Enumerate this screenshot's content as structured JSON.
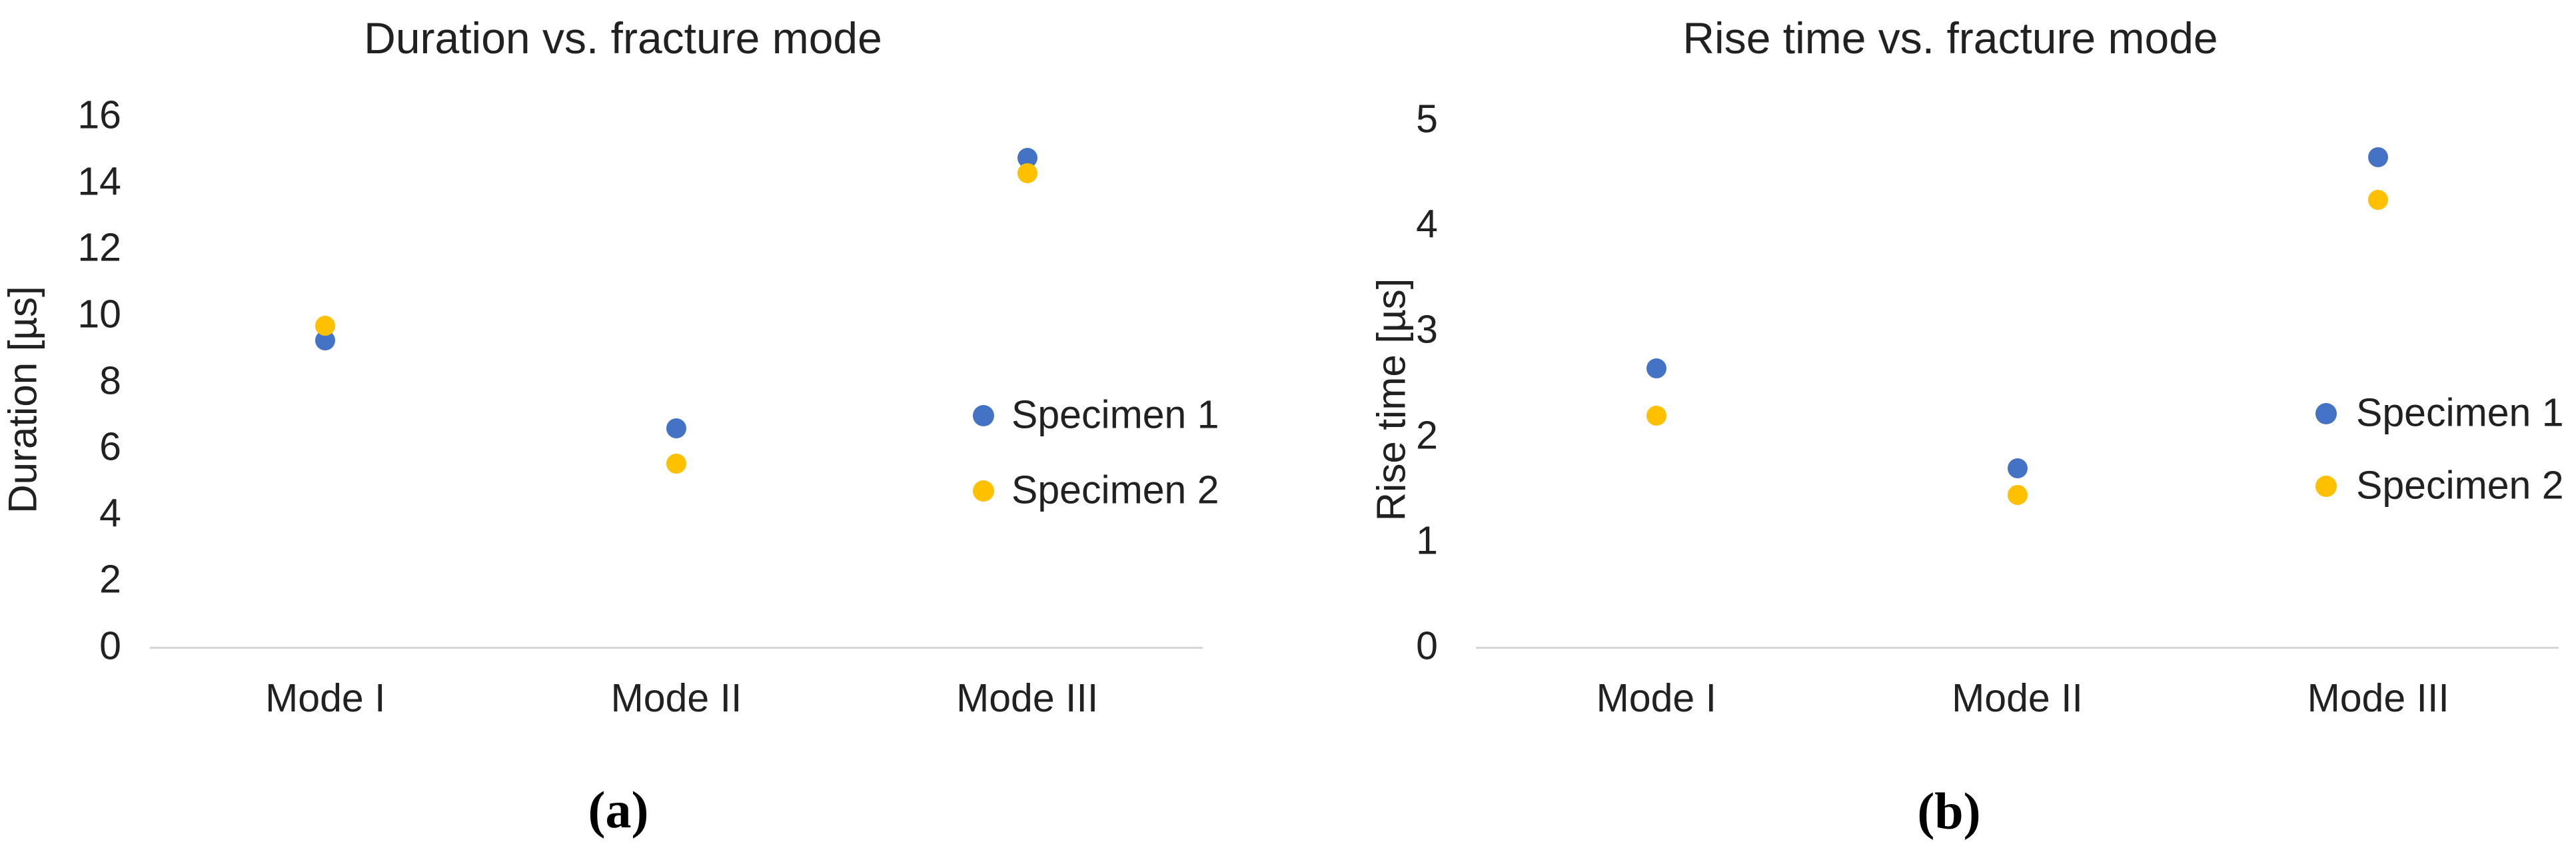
{
  "figure": {
    "panel_labels": [
      "(a)",
      "(b)"
    ]
  },
  "chart_data": [
    {
      "type": "scatter",
      "title": "Duration vs. fracture mode",
      "ylabel": "Duration [µs]",
      "xlabel": "",
      "categories": [
        "Mode I",
        "Mode II",
        "Mode III"
      ],
      "series": [
        {
          "name": "Specimen 1",
          "color": "#4472C4",
          "values": [
            9.25,
            6.6,
            14.75
          ]
        },
        {
          "name": "Specimen 2",
          "color": "#FFC000",
          "values": [
            9.7,
            5.55,
            14.3
          ]
        }
      ],
      "ylim": [
        0,
        16
      ],
      "ytick_step": 2,
      "yticks": [
        0,
        2,
        4,
        6,
        8,
        10,
        12,
        14,
        16
      ],
      "grid": false,
      "legend_position": "right",
      "axis_line_color": "#D6D6D6",
      "panel_label": "(a)"
    },
    {
      "type": "scatter",
      "title": "Rise time vs. fracture mode",
      "ylabel": "Rise time [µs]",
      "xlabel": "",
      "categories": [
        "Mode I",
        "Mode II",
        "Mode III"
      ],
      "series": [
        {
          "name": "Specimen 1",
          "color": "#4472C4",
          "values": [
            2.65,
            1.7,
            4.65
          ]
        },
        {
          "name": "Specimen 2",
          "color": "#FFC000",
          "values": [
            2.2,
            1.45,
            4.25
          ]
        }
      ],
      "ylim": [
        0,
        5
      ],
      "ytick_step": 1,
      "yticks": [
        0,
        1,
        2,
        3,
        4,
        5
      ],
      "grid": false,
      "legend_position": "right",
      "axis_line_color": "#D6D6D6",
      "panel_label": "(b)"
    }
  ]
}
